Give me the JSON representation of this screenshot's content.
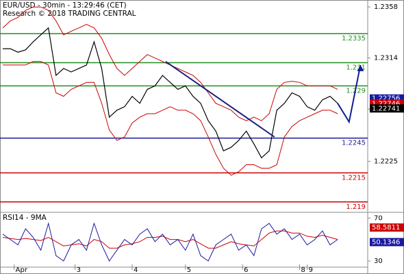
{
  "header": {
    "title": "EUR/USD - 30min - 13:29:46 (CET)",
    "subtitle": "Research © 2018 TRADING CENTRAL"
  },
  "chart_data": [
    {
      "type": "price",
      "xlim": [
        0,
        47.5
      ],
      "ylim": [
        1.2181,
        1.2364
      ],
      "yticks": [
        1.2358,
        1.2314,
        {
          "value": 1.227,
          "label": "1.2270"
        },
        1.2225
      ],
      "xticks": [
        {
          "value": 1.5,
          "label": "Apr"
        },
        {
          "value": 9.5,
          "label": "3"
        },
        {
          "value": 17,
          "label": "4"
        },
        {
          "value": 24,
          "label": "5"
        },
        {
          "value": 31.5,
          "label": "6"
        },
        {
          "value": 39,
          "label": "8"
        },
        {
          "value": 40,
          "label": "9"
        }
      ],
      "close": {
        "color": "#000000",
        "values": [
          1.2322,
          1.2322,
          1.2319,
          1.2321,
          1.2328,
          1.2334,
          1.234,
          1.2299,
          1.2305,
          1.2302,
          1.2305,
          1.2308,
          1.2328,
          1.2305,
          1.2263,
          1.2269,
          1.2272,
          1.2281,
          1.2275,
          1.2287,
          1.229,
          1.2299,
          1.2293,
          1.2287,
          1.229,
          1.2281,
          1.2275,
          1.226,
          1.2251,
          1.2234,
          1.2237,
          1.2243,
          1.2251,
          1.224,
          1.2228,
          1.2234,
          1.2269,
          1.2275,
          1.2284,
          1.2281,
          1.2272,
          1.2269,
          1.2278,
          1.2281,
          1.2275
        ]
      },
      "bands": {
        "color": "#cc0000",
        "upper": [
          1.234,
          1.2346,
          1.2349,
          1.2355,
          1.2358,
          1.2358,
          1.2355,
          1.2346,
          1.2334,
          1.2337,
          1.234,
          1.2343,
          1.234,
          1.2331,
          1.2317,
          1.2305,
          1.2299,
          1.2305,
          1.2311,
          1.2317,
          1.2314,
          1.2311,
          1.2308,
          1.2305,
          1.2302,
          1.2299,
          1.2293,
          1.2284,
          1.2275,
          1.2272,
          1.2269,
          1.2263,
          1.226,
          1.2263,
          1.226,
          1.2266,
          1.2287,
          1.2293,
          1.2294,
          1.2293,
          1.229,
          1.229,
          1.229,
          1.229,
          1.2287
        ],
        "lower": [
          1.2308,
          1.2308,
          1.2308,
          1.2308,
          1.2311,
          1.2311,
          1.2308,
          1.2284,
          1.2281,
          1.2287,
          1.229,
          1.2293,
          1.2293,
          1.2275,
          1.2252,
          1.2243,
          1.2246,
          1.2258,
          1.2263,
          1.2266,
          1.2266,
          1.2269,
          1.2272,
          1.2269,
          1.2269,
          1.2266,
          1.226,
          1.2246,
          1.2231,
          1.2219,
          1.2213,
          1.2216,
          1.2222,
          1.2222,
          1.2219,
          1.2219,
          1.2222,
          1.2246,
          1.2255,
          1.226,
          1.2263,
          1.2266,
          1.2269,
          1.2269,
          1.2266
        ]
      },
      "trendline": {
        "color": "#1a237e",
        "x": [
          21.4,
          35.7
        ],
        "values": [
          1.2311,
          1.2246
        ]
      },
      "forecast": {
        "color": "#0d1f8c",
        "x": [
          44,
          45.5,
          47
        ],
        "values": [
          1.2275,
          1.2259,
          1.2308
        ]
      },
      "levels": [
        {
          "value": 1.2335,
          "color": "#1f8f1f"
        },
        {
          "value": 1.231,
          "color": "#1f8f1f"
        },
        {
          "value": 1.229,
          "color": "#1f8f1f"
        },
        {
          "value": 1.2245,
          "color": "#1a1a9a"
        },
        {
          "value": 1.2215,
          "color": "#cc0000"
        },
        {
          "value": 1.219,
          "color": "#cc0000"
        }
      ],
      "last_values": [
        {
          "value": 1.22756,
          "color": "#1a1aa0"
        },
        {
          "value": 1.22746,
          "color": "#cc0000"
        },
        {
          "value": 1.22741,
          "color": "#000000"
        }
      ]
    },
    {
      "type": "rsi",
      "title": "RSI14 - 9MA",
      "xlim": [
        0,
        47.5
      ],
      "ylim": [
        23,
        74
      ],
      "yticks": [
        70,
        30
      ],
      "rsi": {
        "color": "#1a1aa0",
        "values": [
          55,
          50,
          45,
          60,
          52,
          40,
          65,
          35,
          30,
          45,
          50,
          40,
          65,
          45,
          30,
          40,
          50,
          45,
          55,
          60,
          48,
          55,
          45,
          50,
          40,
          55,
          35,
          30,
          45,
          50,
          55,
          40,
          45,
          35,
          60,
          65,
          55,
          60,
          50,
          55,
          45,
          50,
          58,
          45,
          50
        ]
      },
      "ma": {
        "color": "#cc0000",
        "values": [
          52,
          51,
          50,
          51,
          50,
          49,
          52,
          48,
          44,
          45,
          46,
          44,
          50,
          48,
          42,
          42,
          45,
          46,
          48,
          52,
          52,
          53,
          50,
          50,
          48,
          50,
          46,
          42,
          42,
          45,
          48,
          46,
          45,
          44,
          50,
          56,
          58,
          58,
          56,
          56,
          53,
          52,
          54,
          52,
          50
        ]
      },
      "last_values": [
        {
          "value": 58.5811,
          "color": "#cc0000"
        },
        {
          "value": 50.1346,
          "color": "#1a1aa0"
        }
      ]
    }
  ]
}
